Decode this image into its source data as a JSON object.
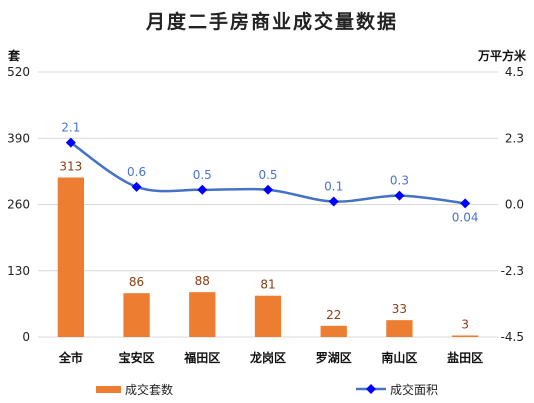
{
  "chart_data": {
    "type": "bar+line",
    "title": "月度二手房商业成交量数据",
    "categories": [
      "全市",
      "宝安区",
      "福田区",
      "龙岗区",
      "罗湖区",
      "南山区",
      "盐田区"
    ],
    "y_left": {
      "unit": "套",
      "range": [
        0,
        520
      ],
      "ticks": [
        "0",
        "130",
        "260",
        "390",
        "520"
      ]
    },
    "y_right": {
      "unit": "万平方米",
      "range": [
        -4.5,
        4.5
      ],
      "ticks": [
        "-4.5",
        "-2.3",
        "0.0",
        "2.3",
        "4.5"
      ]
    },
    "series": [
      {
        "name": "成交套数",
        "type": "bar",
        "axis": "left",
        "color": "#ed7d31",
        "values": [
          313,
          86,
          88,
          81,
          22,
          33,
          3
        ],
        "labels": [
          "313",
          "86",
          "88",
          "81",
          "22",
          "33",
          "3"
        ]
      },
      {
        "name": "成交面积",
        "type": "line",
        "axis": "right",
        "color": "#0000ff",
        "line_color": "#4472c4",
        "values": [
          2.1,
          0.6,
          0.5,
          0.5,
          0.1,
          0.3,
          0.04
        ],
        "labels": [
          "2.1",
          "0.6",
          "0.5",
          "0.5",
          "0.1",
          "0.3",
          "0.04"
        ]
      }
    ],
    "grid": true,
    "legend_position": "bottom"
  }
}
